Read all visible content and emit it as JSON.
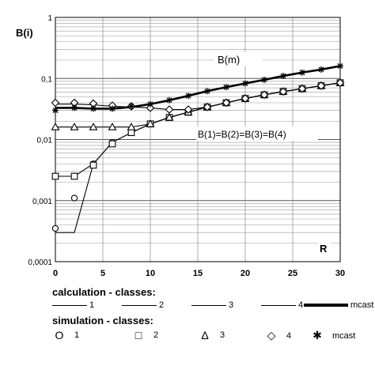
{
  "chart_data": {
    "type": "line",
    "yscale": "log",
    "xlim": [
      0,
      30
    ],
    "ylim": [
      0.0001,
      1
    ],
    "xticks": [
      "0",
      "5",
      "10",
      "15",
      "20",
      "25",
      "30"
    ],
    "yticks": [
      "1",
      "0,1",
      "0,01",
      "0,001",
      "0,0001"
    ],
    "ylabel": "B(i)",
    "xlabel": "R",
    "grid": true,
    "annotations": [
      "B(m)",
      "B(1)=B(2)=B(3)=B(4)"
    ],
    "x": [
      0,
      2,
      4,
      6,
      8,
      10,
      12,
      14,
      16,
      18,
      20,
      22,
      24,
      26,
      28,
      30
    ],
    "series": [
      {
        "name": "1",
        "kind": "calculation",
        "values": [
          0.0003,
          0.0003,
          0.004,
          0.009,
          0.013,
          0.018,
          0.023,
          0.028,
          0.034,
          0.04,
          0.047,
          0.054,
          0.061,
          0.068,
          0.076,
          0.085
        ]
      },
      {
        "name": "2",
        "kind": "calculation",
        "values": [
          0.0025,
          0.0025,
          0.004,
          0.009,
          0.013,
          0.018,
          0.023,
          0.028,
          0.034,
          0.04,
          0.047,
          0.054,
          0.061,
          0.068,
          0.076,
          0.085
        ]
      },
      {
        "name": "3",
        "kind": "calculation",
        "values": [
          0.016,
          0.016,
          0.016,
          0.016,
          0.016,
          0.018,
          0.023,
          0.028,
          0.034,
          0.04,
          0.047,
          0.054,
          0.061,
          0.068,
          0.076,
          0.085
        ]
      },
      {
        "name": "4",
        "kind": "calculation",
        "values": [
          0.038,
          0.038,
          0.037,
          0.035,
          0.034,
          0.033,
          0.031,
          0.031,
          0.034,
          0.04,
          0.047,
          0.054,
          0.061,
          0.068,
          0.076,
          0.085
        ]
      },
      {
        "name": "mcast",
        "kind": "calculation",
        "values": [
          0.033,
          0.033,
          0.032,
          0.032,
          0.034,
          0.038,
          0.044,
          0.052,
          0.062,
          0.072,
          0.083,
          0.095,
          0.11,
          0.125,
          0.14,
          0.16
        ]
      },
      {
        "name": "1",
        "kind": "simulation",
        "marker": "circle",
        "values": [
          0.00035,
          0.0011,
          0.004,
          0.009,
          0.013,
          0.018,
          0.023,
          0.028,
          0.034,
          0.04,
          0.047,
          0.054,
          0.061,
          0.068,
          0.076,
          0.085
        ]
      },
      {
        "name": "2",
        "kind": "simulation",
        "marker": "square",
        "values": [
          0.0025,
          0.0025,
          0.0038,
          0.0085,
          0.013,
          0.018,
          0.023,
          0.028,
          0.034,
          0.04,
          0.047,
          0.054,
          0.061,
          0.068,
          0.076,
          0.085
        ]
      },
      {
        "name": "3",
        "kind": "simulation",
        "marker": "triangle",
        "values": [
          0.016,
          0.016,
          0.016,
          0.016,
          0.016,
          0.018,
          0.023,
          0.028,
          0.034,
          0.04,
          0.047,
          0.054,
          0.061,
          0.068,
          0.076,
          0.085
        ]
      },
      {
        "name": "4",
        "kind": "simulation",
        "marker": "diamond",
        "values": [
          0.04,
          0.04,
          0.039,
          0.036,
          0.035,
          0.033,
          0.031,
          0.031,
          0.034,
          0.04,
          0.047,
          0.054,
          0.061,
          0.068,
          0.076,
          0.085
        ]
      },
      {
        "name": "mcast",
        "kind": "simulation",
        "marker": "star",
        "values": [
          0.03,
          0.033,
          0.032,
          0.032,
          0.035,
          0.038,
          0.044,
          0.052,
          0.062,
          0.072,
          0.083,
          0.095,
          0.11,
          0.125,
          0.14,
          0.16
        ]
      }
    ]
  },
  "legend": {
    "calculation_title": "calculation - classes:",
    "simulation_title": "simulation - classes:",
    "calculation_items": [
      "1",
      "2",
      "3",
      "4",
      "mcast"
    ],
    "simulation_items": [
      "1",
      "2",
      "3",
      "4",
      "mcast"
    ],
    "simulation_symbols": [
      "O",
      "□",
      "Δ",
      "◇",
      "✱"
    ]
  }
}
